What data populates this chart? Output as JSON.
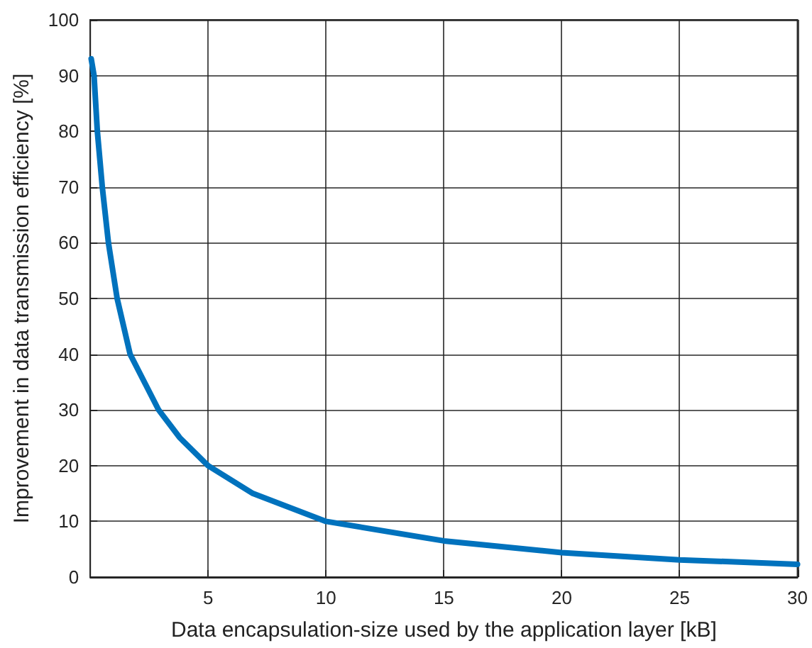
{
  "chart_data": {
    "type": "line",
    "xlabel": "Data encapsulation-size used by the application layer [kB]",
    "ylabel": "Improvement in data transmission efficiency [%]",
    "series": [
      {
        "color": "#0072bd",
        "x": [
          0.04,
          0.16,
          0.3,
          0.51,
          0.77,
          1.14,
          1.69,
          2.9,
          3.8,
          5,
          6.9,
          10,
          15,
          20,
          25,
          30
        ],
        "values": [
          93,
          90,
          80,
          70,
          60,
          50,
          40,
          30,
          25,
          20,
          15,
          10,
          6.5,
          4.4,
          3.1,
          2.3
        ]
      }
    ],
    "xlim": [
      0,
      30
    ],
    "xticks": [
      5,
      10,
      15,
      20,
      25,
      30
    ],
    "ylim": [
      0,
      100
    ],
    "yticks": [
      0,
      10,
      20,
      30,
      40,
      50,
      60,
      70,
      80,
      90,
      100
    ],
    "grid": true,
    "marker": "none",
    "line_style": "solid"
  }
}
